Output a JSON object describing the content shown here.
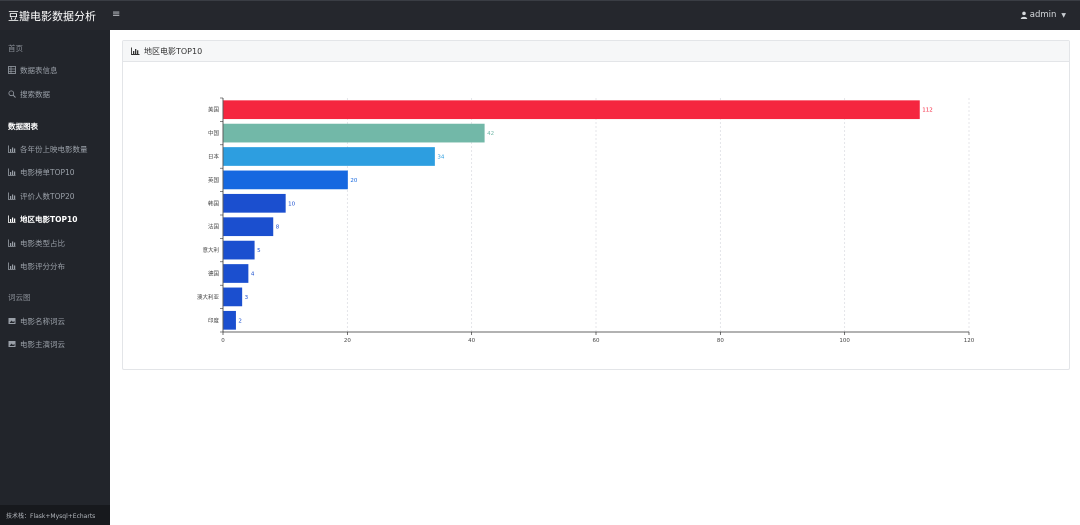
{
  "app": {
    "title": "豆瓣电影数据分析"
  },
  "topbar": {
    "menu_icon": "≡",
    "user": "admin"
  },
  "sidebar": {
    "sections": [
      {
        "label": "首页",
        "bold": false
      },
      {
        "label": "数据图表",
        "bold": true
      },
      {
        "label": "词云图",
        "bold": false
      }
    ],
    "items": [
      {
        "label": "数据表信息",
        "icon": "table-icon",
        "active": false
      },
      {
        "label": "搜索数据",
        "icon": "search-icon",
        "active": false
      },
      {
        "label": "各年份上映电影数量",
        "icon": "chart-icon",
        "active": false
      },
      {
        "label": "电影榜单TOP10",
        "icon": "chart-icon",
        "active": false
      },
      {
        "label": "评价人数TOP20",
        "icon": "chart-icon",
        "active": false
      },
      {
        "label": "地区电影TOP10",
        "icon": "chart-icon",
        "active": true
      },
      {
        "label": "电影类型占比",
        "icon": "chart-icon",
        "active": false
      },
      {
        "label": "电影评分分布",
        "icon": "chart-icon",
        "active": false
      },
      {
        "label": "电影名称词云",
        "icon": "image-icon",
        "active": false
      },
      {
        "label": "电影主演词云",
        "icon": "image-icon",
        "active": false
      }
    ],
    "footer": "技术栈：Flask+Mysql+Echarts"
  },
  "panel": {
    "title": "地区电影TOP10"
  },
  "chart_data": {
    "type": "bar",
    "orientation": "horizontal",
    "categories": [
      "美国",
      "中国",
      "日本",
      "英国",
      "韩国",
      "法国",
      "意大利",
      "德国",
      "澳大利亚",
      "印度"
    ],
    "values": [
      112,
      42,
      34,
      20,
      10,
      8,
      5,
      4,
      3,
      2
    ],
    "colors": [
      "#f5263f",
      "#72b8a8",
      "#2d9ee0",
      "#1668e0",
      "#1b4fcf",
      "#1b4fcf",
      "#1b4fcf",
      "#1b4fcf",
      "#1b4fcf",
      "#1b4fcf"
    ],
    "xlim": [
      0,
      120
    ],
    "xticks": [
      0,
      20,
      40,
      60,
      80,
      100,
      120
    ],
    "grid": true,
    "data_labels": true
  }
}
